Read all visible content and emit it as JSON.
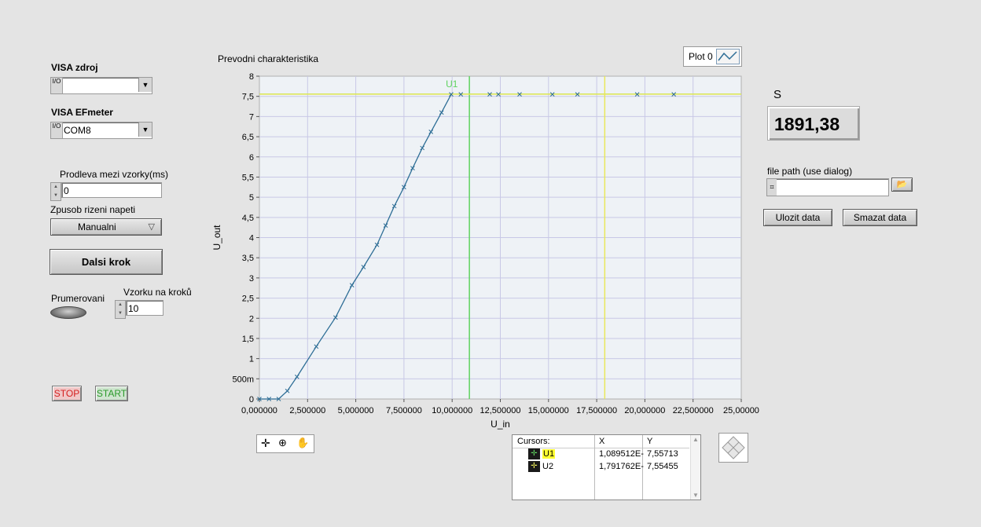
{
  "left_panel": {
    "visa_zdroj": {
      "label": "VISA  zdroj",
      "value": ""
    },
    "visa_efmeter": {
      "label": "VISA EFmeter",
      "value": "COM8"
    },
    "visa_io_glyph": "I/O",
    "prodleva": {
      "label": "Prodleva mezi vzorky(ms)",
      "value": "0"
    },
    "zpusob": {
      "label": "Zpusob rizeni napeti",
      "value": "Manualni"
    },
    "dalsi_krok_label": "Dalsi krok",
    "prumerovani_label": "Prumerovani",
    "vzorku": {
      "label": "Vzorku na kroků",
      "value": "10"
    },
    "stop_label": "STOP",
    "start_label": "START"
  },
  "chart_header": {
    "title": "Prevodni charakteristika",
    "legend_label": "Plot 0"
  },
  "right_panel": {
    "s_label": "S",
    "s_value": "1891,38",
    "file_path_label": "file path (use dialog)",
    "file_path_value": "",
    "save_label": "Ulozit data",
    "delete_label": "Smazat data"
  },
  "cursors_table": {
    "headers": [
      "Cursors:",
      "X",
      "Y"
    ],
    "rows": [
      {
        "name": "U1",
        "x": "1,089512E-",
        "y": "7,55713"
      },
      {
        "name": "U2",
        "x": "1,791762E-",
        "y": "7,55455"
      }
    ]
  },
  "chart_data": {
    "type": "line",
    "title": "Prevodni charakteristika",
    "xlabel": "U_in",
    "ylabel": "U_out",
    "xlim": [
      0,
      25
    ],
    "ylim": [
      0,
      8
    ],
    "grid": true,
    "x_ticks": [
      "0,000000",
      "2,500000",
      "5,000000",
      "7,500000",
      "10,000000",
      "12,500000",
      "15,000000",
      "17,500000",
      "20,000000",
      "22,500000",
      "25,00000"
    ],
    "y_ticks": [
      "0",
      "500m",
      "1",
      "1,5",
      "2",
      "2,5",
      "3",
      "3,5",
      "4",
      "4,5",
      "5",
      "5,5",
      "6",
      "6,5",
      "7",
      "7,5",
      "8"
    ],
    "legend": [
      "Plot 0"
    ],
    "series": [
      {
        "name": "Plot 0",
        "color": "#2e6e96",
        "x": [
          0,
          0.5,
          1.0,
          1.45,
          1.95,
          2.95,
          3.95,
          4.8,
          5.4,
          6.1,
          6.55,
          7.0,
          7.5,
          7.95,
          8.45,
          8.9,
          9.45,
          9.95,
          10.45,
          11.95,
          12.4,
          13.5,
          15.2,
          16.5,
          19.6,
          21.5
        ],
        "y": [
          0,
          0,
          0,
          0.2,
          0.55,
          1.3,
          2.02,
          2.82,
          3.27,
          3.82,
          4.3,
          4.78,
          5.25,
          5.72,
          6.22,
          6.62,
          7.1,
          7.55,
          7.55,
          7.55,
          7.55,
          7.55,
          7.55,
          7.55,
          7.55,
          7.55
        ]
      }
    ],
    "cursors": [
      {
        "name": "U1",
        "x": 10.89512,
        "y": 7.55713,
        "color": "#5fd35f"
      },
      {
        "name": "U2",
        "x": 17.91762,
        "y": 7.55455,
        "color": "#e8e85a"
      }
    ],
    "cursor_label": "U1",
    "colors": {
      "plot_bg": "#eef2f6",
      "grid": "#c8c8e6",
      "trace": "#2e6e96"
    }
  }
}
